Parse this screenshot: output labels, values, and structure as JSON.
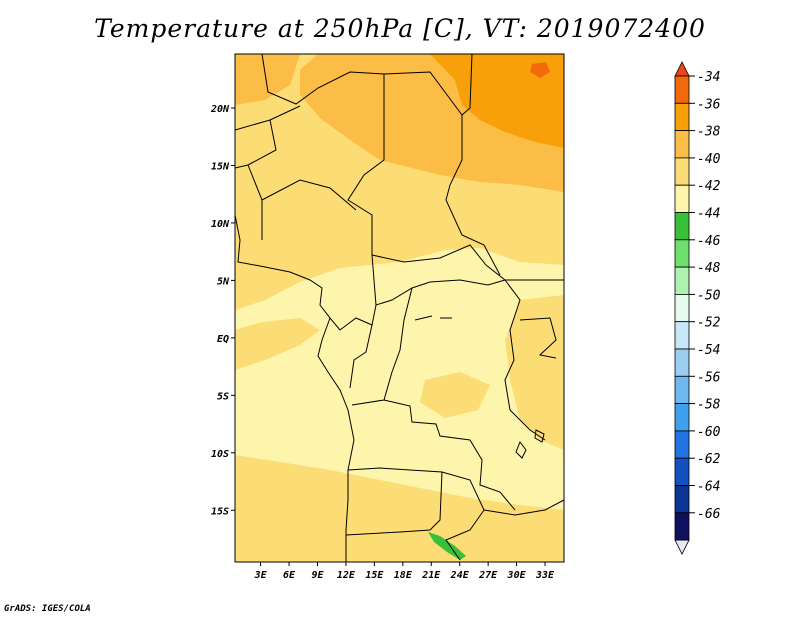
{
  "title": "Temperature at 250hPa [C], VT: 2019072400",
  "credit": "GrADS: IGES/COLA",
  "axes": {
    "lat_labels": [
      "20N",
      "15N",
      "10N",
      "5N",
      "EQ",
      "5S",
      "10S",
      "15S"
    ],
    "lat_values": [
      20,
      15,
      10,
      5,
      0,
      -5,
      -10,
      -15
    ],
    "lon_labels": [
      "3E",
      "6E",
      "9E",
      "12E",
      "15E",
      "18E",
      "21E",
      "24E",
      "27E",
      "30E",
      "33E"
    ],
    "lon_values": [
      3,
      6,
      9,
      12,
      15,
      18,
      21,
      24,
      27,
      30,
      33
    ],
    "lon_range": [
      0.3,
      35
    ],
    "lat_range": [
      -19.5,
      24.7
    ]
  },
  "colorbar": {
    "labels": [
      "-34",
      "-36",
      "-38",
      "-40",
      "-42",
      "-44",
      "-46",
      "-48",
      "-50",
      "-52",
      "-54",
      "-56",
      "-58",
      "-60",
      "-62",
      "-64",
      "-66"
    ],
    "colors": [
      "#e8461e",
      "#f46a0a",
      "#f8a00a",
      "#fbbd45",
      "#fcdc74",
      "#fdf5ab",
      "#38c038",
      "#6ee06e",
      "#b0f0b0",
      "#e6fbf0",
      "#c8e8fa",
      "#9ccef2",
      "#6eb8ef",
      "#3fa0ec",
      "#2073e0",
      "#1450c0",
      "#0c3494",
      "#101060",
      "#e8e8f8"
    ]
  },
  "chart_data": {
    "type": "heatmap",
    "title": "Temperature at 250hPa [C], VT: 2019072400",
    "variable": "Temperature at 250hPa",
    "units": "C",
    "valid_time": "2019072400",
    "region": {
      "lon": [
        0.3,
        35
      ],
      "lat": [
        -19.5,
        24.7
      ]
    },
    "contour_levels": [
      -34,
      -36,
      -38,
      -40,
      -42,
      -44,
      -46,
      -48,
      -50,
      -52,
      -54,
      -56,
      -58,
      -60,
      -62,
      -64,
      -66
    ],
    "regions": [
      {
        "area": "far northeast (around 22N, 32E)",
        "range": "-36 to -34"
      },
      {
        "area": "northeast (Sudan/Egypt, 15N-24N, 26E-35E)",
        "range": "-38 to -36"
      },
      {
        "area": "north-central (Libya/Chad, 15N-24N, 12E-26E)",
        "range": "-40 to -38"
      },
      {
        "area": "west and south Atlantic margins, northern belt",
        "range": "-42 to -40"
      },
      {
        "area": "central Africa / Congo basin, southern Angola interior",
        "range": "-44 to -42"
      },
      {
        "area": "small patch near 18S, 22E",
        "range": "-46 to -44"
      }
    ]
  }
}
